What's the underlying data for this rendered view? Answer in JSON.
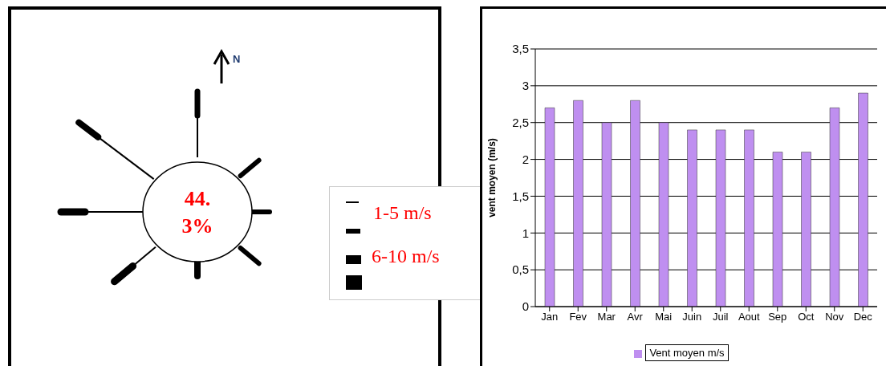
{
  "chart_data": [
    {
      "type": "other",
      "annotations": [
        "N",
        "44.3%",
        "1-5 m/s",
        "6-10 m/s"
      ]
    },
    {
      "type": "bar",
      "categories": [
        "Jan",
        "Fev",
        "Mar",
        "Avr",
        "Mai",
        "Juin",
        "Juil",
        "Aout",
        "Sep",
        "Oct",
        "Nov",
        "Dec"
      ],
      "series": [
        {
          "name": "Vent moyen m/s",
          "color": "#bf8ff0",
          "values": [
            2.7,
            2.8,
            2.5,
            2.8,
            2.5,
            2.4,
            2.4,
            2.4,
            2.1,
            2.1,
            2.7,
            2.9
          ]
        }
      ],
      "ylabel": "vent moyen (m/s)",
      "ylim": [
        0,
        3.5
      ],
      "yticks": [
        0,
        {
          "value": 0.5,
          "label": "0,5"
        },
        1,
        {
          "value": 1.5,
          "label": "1,5"
        },
        2,
        {
          "value": 2.5,
          "label": "2,5"
        },
        3,
        {
          "value": 3.5,
          "label": "3,5"
        }
      ],
      "grid": "y",
      "legend": "bottom"
    }
  ]
}
